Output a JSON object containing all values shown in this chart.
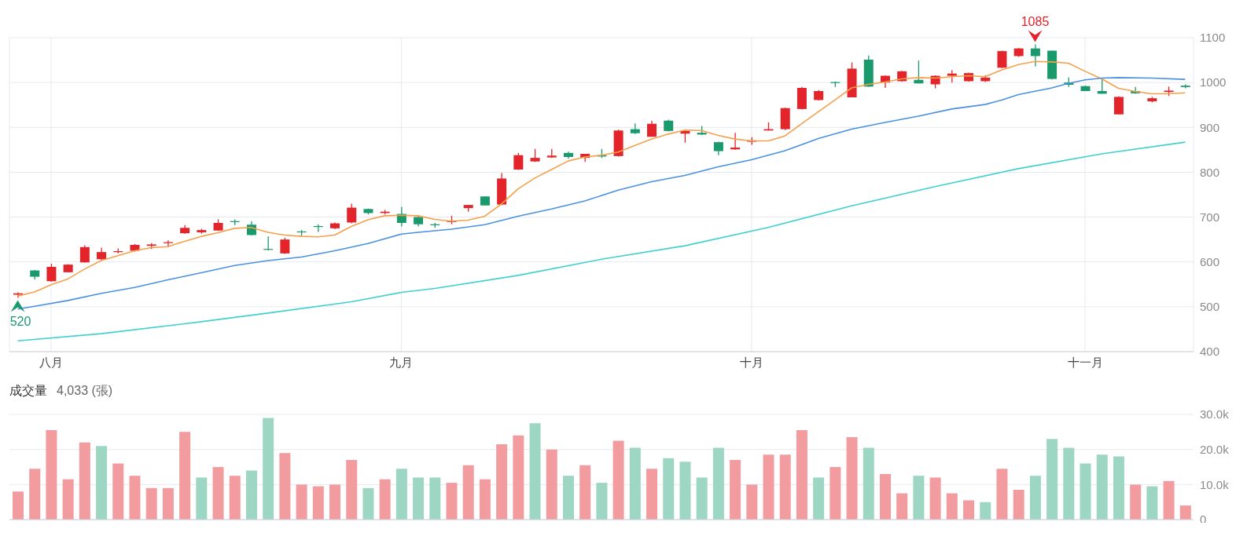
{
  "chart_data": [
    {
      "type": "candlestick",
      "categories": [
        null,
        null,
        "八月",
        null,
        null,
        null,
        null,
        null,
        null,
        null,
        null,
        null,
        null,
        null,
        null,
        null,
        null,
        null,
        null,
        null,
        null,
        null,
        null,
        "九月",
        null,
        null,
        null,
        null,
        null,
        null,
        null,
        null,
        null,
        null,
        null,
        null,
        null,
        null,
        null,
        null,
        null,
        null,
        null,
        null,
        "十月",
        null,
        null,
        null,
        null,
        null,
        null,
        null,
        null,
        null,
        null,
        null,
        null,
        null,
        null,
        null,
        null,
        null,
        null,
        null,
        "十一月",
        null,
        null,
        null,
        null,
        null,
        null
      ],
      "ohlc": [
        [
          527,
          532,
          520,
          530
        ],
        [
          581,
          582,
          561,
          567
        ],
        [
          557,
          596,
          556,
          589
        ],
        [
          577,
          595,
          577,
          594
        ],
        [
          599,
          637,
          598,
          633
        ],
        [
          606,
          632,
          604,
          622
        ],
        [
          622,
          630,
          619,
          624
        ],
        [
          625,
          640,
          623,
          638
        ],
        [
          636,
          642,
          629,
          639
        ],
        [
          642,
          648,
          635,
          644
        ],
        [
          664,
          682,
          663,
          676
        ],
        [
          666,
          674,
          663,
          671
        ],
        [
          670,
          695,
          669,
          687
        ],
        [
          691,
          695,
          682,
          689
        ],
        [
          683,
          691,
          659,
          660
        ],
        [
          629,
          657,
          626,
          627
        ],
        [
          619,
          654,
          618,
          650
        ],
        [
          668,
          671,
          658,
          666
        ],
        [
          680,
          684,
          667,
          678
        ],
        [
          675,
          688,
          673,
          686
        ],
        [
          688,
          730,
          686,
          721
        ],
        [
          718,
          719,
          706,
          709
        ],
        [
          709,
          716,
          706,
          712
        ],
        [
          707,
          723,
          679,
          687
        ],
        [
          700,
          703,
          679,
          684
        ],
        [
          684,
          687,
          676,
          682
        ],
        [
          689,
          703,
          684,
          692
        ],
        [
          720,
          727,
          712,
          727
        ],
        [
          746,
          746,
          726,
          726
        ],
        [
          728,
          798,
          727,
          786
        ],
        [
          806,
          843,
          805,
          838
        ],
        [
          824,
          852,
          823,
          832
        ],
        [
          833,
          852,
          832,
          837
        ],
        [
          843,
          846,
          830,
          834
        ],
        [
          832,
          841,
          823,
          841
        ],
        [
          838,
          852,
          832,
          835
        ],
        [
          836,
          895,
          835,
          893
        ],
        [
          896,
          909,
          885,
          887
        ],
        [
          879,
          915,
          879,
          908
        ],
        [
          915,
          917,
          891,
          892
        ],
        [
          886,
          893,
          866,
          892
        ],
        [
          888,
          903,
          883,
          884
        ],
        [
          867,
          868,
          838,
          847
        ],
        [
          851,
          888,
          850,
          855
        ],
        [
          868,
          878,
          861,
          871
        ],
        [
          893,
          911,
          893,
          896
        ],
        [
          896,
          944,
          894,
          943
        ],
        [
          941,
          990,
          940,
          988
        ],
        [
          961,
          983,
          960,
          981
        ],
        [
          1001,
          1002,
          990,
          999
        ],
        [
          967,
          1045,
          967,
          1031
        ],
        [
          1051,
          1060,
          990,
          991
        ],
        [
          1000,
          1016,
          988,
          1015
        ],
        [
          1003,
          1026,
          1002,
          1025
        ],
        [
          1006,
          1049,
          998,
          998
        ],
        [
          996,
          1016,
          987,
          1015
        ],
        [
          1015,
          1028,
          1000,
          1020
        ],
        [
          1003,
          1022,
          1002,
          1021
        ],
        [
          1003,
          1016,
          1001,
          1011
        ],
        [
          1033,
          1071,
          1032,
          1070
        ],
        [
          1059,
          1077,
          1057,
          1076
        ],
        [
          1076,
          1085,
          1036,
          1059
        ],
        [
          1071,
          1071,
          1007,
          1008
        ],
        [
          1000,
          1011,
          990,
          995
        ],
        [
          992,
          993,
          981,
          981
        ],
        [
          981,
          1008,
          975,
          975
        ],
        [
          929,
          969,
          929,
          968
        ],
        [
          981,
          990,
          975,
          976
        ],
        [
          958,
          968,
          956,
          965
        ],
        [
          979,
          991,
          970,
          982
        ],
        [
          993,
          996,
          987,
          990
        ]
      ],
      "colors": [
        "#e3242b",
        "#1a9a6c",
        "#e3242b",
        "#e3242b",
        "#e3242b",
        "#e3242b",
        "#e3242b",
        "#e3242b",
        "#e3242b",
        "#e3242b",
        "#e3242b",
        "#e3242b",
        "#e3242b",
        "#1a9a6c",
        "#1a9a6c",
        "#1a9a6c",
        "#e3242b",
        "#1a9a6c",
        "#1a9a6c",
        "#e3242b",
        "#e3242b",
        "#1a9a6c",
        "#e3242b",
        "#1a9a6c",
        "#1a9a6c",
        "#1a9a6c",
        "#e3242b",
        "#e3242b",
        "#1a9a6c",
        "#e3242b",
        "#e3242b",
        "#e3242b",
        "#e3242b",
        "#1a9a6c",
        "#e3242b",
        "#1a9a6c",
        "#e3242b",
        "#1a9a6c",
        "#e3242b",
        "#1a9a6c",
        "#e3242b",
        "#1a9a6c",
        "#1a9a6c",
        "#e3242b",
        "#e3242b",
        "#e3242b",
        "#e3242b",
        "#e3242b",
        "#e3242b",
        "#1a9a6c",
        "#e3242b",
        "#1a9a6c",
        "#e3242b",
        "#e3242b",
        "#1a9a6c",
        "#e3242b",
        "#e3242b",
        "#e3242b",
        "#e3242b",
        "#e3242b",
        "#e3242b",
        "#1a9a6c",
        "#1a9a6c",
        "#1a9a6c",
        "#1a9a6c",
        "#1a9a6c",
        "#e3242b",
        "#1a9a6c",
        "#e3242b",
        "#e3242b",
        "#1a9a6c"
      ],
      "series": [
        {
          "type": "line",
          "color": "#f5a04a",
          "values": [
            524,
            533,
            549,
            562,
            584,
            603,
            614,
            625,
            632,
            634,
            646,
            657,
            665,
            675,
            677,
            666,
            660,
            657,
            656,
            660,
            679,
            694,
            703,
            704,
            703,
            695,
            691,
            693,
            702,
            729,
            763,
            787,
            806,
            825,
            834,
            838,
            845,
            860,
            874,
            885,
            894,
            893,
            882,
            874,
            870,
            870,
            881,
            908,
            935,
            961,
            988,
            996,
            1001,
            1008,
            1011,
            1010,
            1013,
            1015,
            1013,
            1028,
            1040,
            1047,
            1046,
            1043,
            1025,
            1008,
            987,
            980,
            975,
            975,
            977
          ]
        },
        {
          "type": "line",
          "color": "#4a90e2",
          "values": [
            495,
            501,
            null,
            514,
            null,
            530,
            null,
            543,
            null,
            560,
            null,
            576,
            null,
            592,
            null,
            603,
            null,
            611,
            null,
            625,
            null,
            641,
            null,
            662,
            666,
            null,
            673,
            null,
            683,
            null,
            702,
            null,
            718,
            null,
            736,
            null,
            760,
            null,
            779,
            null,
            793,
            null,
            812,
            null,
            828,
            null,
            848,
            null,
            875,
            null,
            896,
            null,
            911,
            null,
            925,
            null,
            941,
            null,
            951,
            961,
            973,
            null,
            988,
            998,
            1006,
            1010,
            1011,
            null,
            1010,
            null,
            1007
          ]
        },
        {
          "type": "line",
          "color": "#40d0d0",
          "values": [
            424,
            null,
            null,
            null,
            null,
            440,
            null,
            null,
            null,
            null,
            462,
            null,
            null,
            null,
            null,
            486,
            null,
            null,
            null,
            null,
            511,
            null,
            null,
            532,
            null,
            541,
            null,
            null,
            null,
            null,
            570,
            null,
            null,
            null,
            null,
            606,
            null,
            null,
            null,
            null,
            636,
            null,
            null,
            null,
            null,
            677,
            null,
            null,
            null,
            null,
            725,
            null,
            null,
            null,
            null,
            768,
            null,
            null,
            null,
            null,
            808,
            null,
            null,
            null,
            null,
            841,
            null,
            null,
            null,
            null,
            867
          ]
        }
      ],
      "annotations": [
        {
          "text": "1085",
          "y": 1085
        },
        {
          "text": "520",
          "y": 520
        }
      ],
      "ylim": [
        400,
        1100
      ],
      "yticks": [
        400,
        500,
        600,
        700,
        800,
        900,
        1000,
        1100
      ],
      "grid": true,
      "marker": "none"
    },
    {
      "type": "bar",
      "title": "成交量",
      "subtitle": "4,033 (張)",
      "categories": [
        null,
        null,
        null,
        null,
        null,
        null,
        null,
        null,
        null,
        null,
        null,
        null,
        null,
        null,
        null,
        null,
        null,
        null,
        null,
        null,
        null,
        null,
        null,
        null,
        null,
        null,
        null,
        null,
        null,
        null,
        null,
        null,
        null,
        null,
        null,
        null,
        null,
        null,
        null,
        null,
        null,
        null,
        null,
        null,
        null,
        null,
        null,
        null,
        null,
        null,
        null,
        null,
        null,
        null,
        null,
        null,
        null,
        null,
        null,
        null,
        null,
        null,
        null,
        null,
        null,
        null,
        null,
        null,
        null,
        null,
        null
      ],
      "values": [
        8000,
        14500,
        25500,
        11500,
        22000,
        21000,
        16000,
        12500,
        9000,
        9000,
        25000,
        12000,
        15000,
        12500,
        14000,
        29000,
        19000,
        10000,
        9500,
        10000,
        17000,
        9000,
        11500,
        14500,
        12000,
        12000,
        10500,
        15500,
        11500,
        21500,
        24000,
        27500,
        20000,
        12500,
        15500,
        10500,
        22500,
        20500,
        14500,
        17500,
        16500,
        12000,
        20500,
        17000,
        10000,
        18500,
        18500,
        25500,
        12000,
        15000,
        23500,
        20500,
        13000,
        7500,
        12500,
        12000,
        7500,
        5500,
        5000,
        14500,
        8500,
        12500,
        23000,
        20500,
        16000,
        18500,
        18000,
        10000,
        9500,
        11000,
        4033
      ],
      "colors": [
        "#f29ca0",
        "#f29ca0",
        "#f29ca0",
        "#f29ca0",
        "#f29ca0",
        "#9dd6c2",
        "#f29ca0",
        "#f29ca0",
        "#f29ca0",
        "#f29ca0",
        "#f29ca0",
        "#9dd6c2",
        "#f29ca0",
        "#f29ca0",
        "#9dd6c2",
        "#9dd6c2",
        "#f29ca0",
        "#f29ca0",
        "#f29ca0",
        "#f29ca0",
        "#f29ca0",
        "#9dd6c2",
        "#f29ca0",
        "#9dd6c2",
        "#9dd6c2",
        "#9dd6c2",
        "#f29ca0",
        "#f29ca0",
        "#f29ca0",
        "#f29ca0",
        "#f29ca0",
        "#9dd6c2",
        "#f29ca0",
        "#9dd6c2",
        "#f29ca0",
        "#9dd6c2",
        "#f29ca0",
        "#9dd6c2",
        "#f29ca0",
        "#9dd6c2",
        "#9dd6c2",
        "#9dd6c2",
        "#9dd6c2",
        "#f29ca0",
        "#f29ca0",
        "#f29ca0",
        "#f29ca0",
        "#f29ca0",
        "#9dd6c2",
        "#f29ca0",
        "#f29ca0",
        "#9dd6c2",
        "#f29ca0",
        "#f29ca0",
        "#9dd6c2",
        "#f29ca0",
        "#f29ca0",
        "#f29ca0",
        "#9dd6c2",
        "#f29ca0",
        "#f29ca0",
        "#9dd6c2",
        "#9dd6c2",
        "#9dd6c2",
        "#9dd6c2",
        "#9dd6c2",
        "#9dd6c2",
        "#f29ca0",
        "#9dd6c2",
        "#f29ca0",
        "#f29ca0"
      ],
      "ylim": [
        0,
        30000
      ],
      "yticks": [
        0,
        {
          "value": 10000,
          "label": "10.0k"
        },
        {
          "value": 20000,
          "label": "20.0k"
        },
        {
          "value": 30000,
          "label": "30.0k"
        }
      ],
      "grid": "y",
      "tick_labels": "y"
    }
  ]
}
